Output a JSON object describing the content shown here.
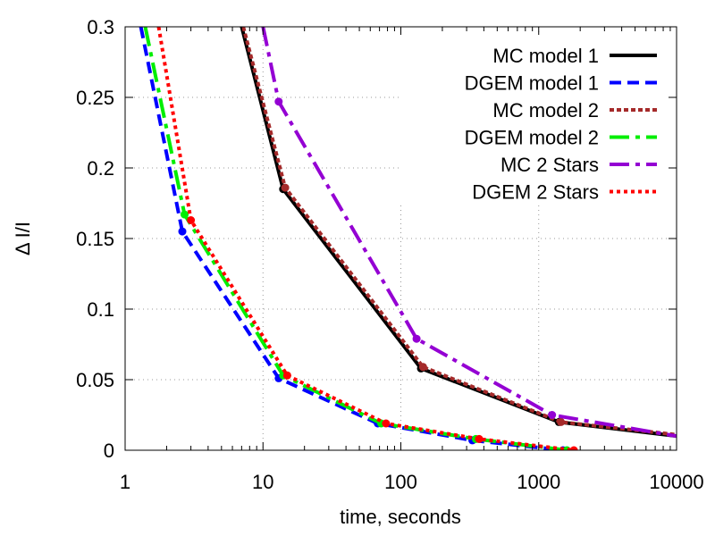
{
  "chart_data": {
    "type": "line",
    "xlabel": "time, seconds",
    "ylabel": "Δ I/I",
    "xscale": "log",
    "xlim": [
      1,
      10000
    ],
    "ylim": [
      0,
      0.3
    ],
    "grid": true,
    "legend_position": "top-right",
    "xticks": [
      {
        "value": 1,
        "label": "1"
      },
      {
        "value": 10,
        "label": "10"
      },
      {
        "value": 100,
        "label": "100"
      },
      {
        "value": 1000,
        "label": "1000"
      },
      {
        "value": 10000,
        "label": "10000"
      }
    ],
    "yticks": [
      {
        "value": 0,
        "label": "0"
      },
      {
        "value": 0.05,
        "label": "0.05"
      },
      {
        "value": 0.1,
        "label": "0.1"
      },
      {
        "value": 0.15,
        "label": "0.15"
      },
      {
        "value": 0.2,
        "label": "0.2"
      },
      {
        "value": 0.25,
        "label": "0.25"
      },
      {
        "value": 0.3,
        "label": "0.3"
      }
    ],
    "series": [
      {
        "name": "MC model 1",
        "color": "#000000",
        "style": "solid",
        "points": [
          [
            7,
            0.3
          ],
          [
            14,
            0.185
          ],
          [
            140,
            0.058
          ],
          [
            1400,
            0.02
          ],
          [
            10000,
            0.01
          ]
        ],
        "markers": [
          [
            14,
            0.185
          ],
          [
            140,
            0.058
          ],
          [
            1400,
            0.02
          ]
        ]
      },
      {
        "name": "DGEM model 1",
        "color": "#0000ff",
        "style": "dashed",
        "points": [
          [
            1.3,
            0.3
          ],
          [
            2.6,
            0.155
          ],
          [
            13,
            0.051
          ],
          [
            68,
            0.019
          ],
          [
            330,
            0.007
          ],
          [
            1500,
            0.0
          ]
        ],
        "markers": [
          [
            2.6,
            0.155
          ],
          [
            13,
            0.051
          ],
          [
            68,
            0.019
          ],
          [
            330,
            0.007
          ],
          [
            1500,
            0.0
          ]
        ]
      },
      {
        "name": "MC model 2",
        "color": "#a52a2a",
        "style": "dotted",
        "points": [
          [
            7.2,
            0.3
          ],
          [
            14.5,
            0.186
          ],
          [
            145,
            0.059
          ],
          [
            1450,
            0.02
          ],
          [
            10000,
            0.011
          ]
        ],
        "markers": [
          [
            14.5,
            0.186
          ],
          [
            145,
            0.059
          ],
          [
            1450,
            0.02
          ]
        ]
      },
      {
        "name": "DGEM model 2",
        "color": "#00ee00",
        "style": "dash-dot",
        "points": [
          [
            1.4,
            0.3
          ],
          [
            2.7,
            0.167
          ],
          [
            14,
            0.053
          ],
          [
            72,
            0.019
          ],
          [
            350,
            0.008
          ],
          [
            1600,
            0.0
          ]
        ],
        "markers": [
          [
            2.7,
            0.167
          ],
          [
            14,
            0.053
          ],
          [
            72,
            0.019
          ],
          [
            350,
            0.008
          ],
          [
            1600,
            0.0
          ]
        ]
      },
      {
        "name": "MC 2 Stars",
        "color": "#9400d3",
        "style": "dash-dot",
        "points": [
          [
            10,
            0.3
          ],
          [
            13,
            0.247
          ],
          [
            130,
            0.079
          ],
          [
            1250,
            0.025
          ],
          [
            10000,
            0.01
          ]
        ],
        "markers": [
          [
            13,
            0.247
          ],
          [
            130,
            0.079
          ],
          [
            1250,
            0.025
          ]
        ]
      },
      {
        "name": "DGEM 2 Stars",
        "color": "#ff0000",
        "style": "short-dotted",
        "points": [
          [
            1.75,
            0.3
          ],
          [
            3.0,
            0.163
          ],
          [
            15,
            0.053
          ],
          [
            78,
            0.019
          ],
          [
            370,
            0.008
          ],
          [
            1800,
            0.0
          ]
        ],
        "markers": [
          [
            3.0,
            0.163
          ],
          [
            15,
            0.053
          ],
          [
            78,
            0.019
          ],
          [
            370,
            0.008
          ],
          [
            1800,
            0.0
          ]
        ]
      }
    ]
  }
}
